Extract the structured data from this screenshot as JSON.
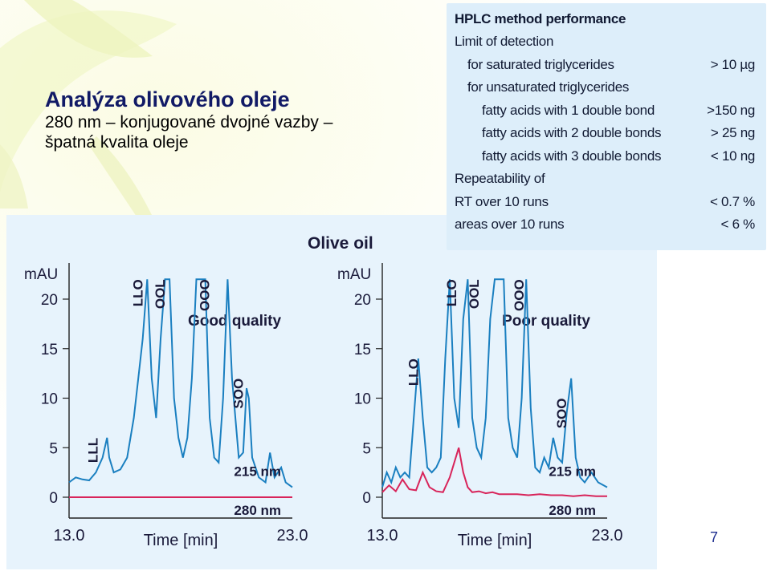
{
  "slide": {
    "title": "Analýza olivového oleje",
    "line1": "280 nm – konjugované dvojné vazby –",
    "line2": "špatná kvalita oleje",
    "page_number": "7"
  },
  "performance": {
    "heading": "HPLC method performance",
    "rows": [
      {
        "label": "Limit of detection",
        "value": ""
      },
      {
        "label": "for saturated triglycerides",
        "value": "> 10 µg"
      },
      {
        "label": "for unsaturated triglycerides",
        "value": ""
      },
      {
        "label": "fatty acids with 1 double bond",
        "value": ">150 ng"
      },
      {
        "label": "fatty acids with 2 double bonds",
        "value": "> 25 ng"
      },
      {
        "label": "fatty acids with 3 double bonds",
        "value": "< 10 ng"
      },
      {
        "label": "Repeatability of",
        "value": ""
      },
      {
        "label": "RT over 10 runs",
        "value": "< 0.7 %"
      },
      {
        "label": "areas over 10 runs",
        "value": "< 6 %"
      }
    ]
  },
  "chart_data": [
    {
      "type": "line",
      "title": "Olive oil",
      "panel_label": "Good quality",
      "xlabel": "Time [min]",
      "ylabel": "mAU",
      "xlim": [
        13.0,
        23.0
      ],
      "ylim": [
        0,
        20
      ],
      "x_ticks": [
        "13.0",
        "23.0"
      ],
      "y_ticks": [
        "0",
        "5",
        "10",
        "15",
        "20"
      ],
      "peak_labels": [
        {
          "label": "LLL",
          "x": 14.5,
          "y": 6
        },
        {
          "label": "LLO",
          "x": 16.5,
          "y": 22
        },
        {
          "label": "OOL",
          "x": 17.5,
          "y": 22
        },
        {
          "label": "OOO",
          "x": 19.5,
          "y": 22
        },
        {
          "label": "SOO",
          "x": 21.0,
          "y": 12
        }
      ],
      "series": [
        {
          "name": "215 nm",
          "color": "#1a7fc0",
          "x": [
            13.0,
            13.3,
            13.6,
            13.9,
            14.2,
            14.5,
            14.7,
            14.8,
            15.0,
            15.3,
            15.6,
            15.9,
            16.1,
            16.3,
            16.5,
            16.7,
            16.9,
            17.1,
            17.3,
            17.5,
            17.7,
            17.9,
            18.1,
            18.3,
            18.5,
            18.7,
            18.9,
            19.1,
            19.3,
            19.5,
            19.7,
            19.9,
            20.1,
            20.3,
            20.6,
            20.8,
            20.95,
            21.05,
            21.2,
            21.5,
            21.8,
            22.0,
            22.2,
            22.5,
            22.7,
            23.0
          ],
          "y": [
            1.5,
            2.0,
            1.8,
            1.7,
            2.5,
            4.0,
            6.0,
            4.0,
            2.5,
            2.8,
            4.0,
            8.0,
            12.0,
            16.0,
            22.0,
            12.0,
            8.0,
            16.0,
            22.0,
            22.0,
            10.0,
            6.0,
            4.0,
            6.0,
            12.0,
            22.0,
            22.0,
            22.0,
            8.0,
            4.0,
            3.5,
            10.0,
            22.0,
            12.0,
            4.0,
            4.5,
            11.0,
            10.0,
            4.0,
            2.0,
            1.5,
            4.5,
            2.0,
            3.0,
            1.5,
            1.0
          ]
        },
        {
          "name": "280 nm",
          "color": "#d8245a",
          "x": [
            13.0,
            23.0
          ],
          "y": [
            0.0,
            0.0
          ]
        }
      ]
    },
    {
      "type": "line",
      "title": "Olive oil",
      "panel_label": "Poor quality",
      "xlabel": "Time [min]",
      "ylabel": "mAU",
      "xlim": [
        13.0,
        23.0
      ],
      "ylim": [
        0,
        20
      ],
      "x_ticks": [
        "13.0",
        "23.0"
      ],
      "y_ticks": [
        "0",
        "5",
        "10",
        "15",
        "20"
      ],
      "peak_labels": [
        {
          "label": "LLO",
          "x": 14.8,
          "y": 14
        },
        {
          "label": "LLO",
          "x": 16.5,
          "y": 22
        },
        {
          "label": "OOL",
          "x": 17.5,
          "y": 22
        },
        {
          "label": "OOO",
          "x": 19.5,
          "y": 22
        },
        {
          "label": "SOO",
          "x": 21.4,
          "y": 10
        }
      ],
      "series": [
        {
          "name": "215 nm",
          "color": "#1a7fc0",
          "x": [
            13.0,
            13.2,
            13.4,
            13.6,
            13.8,
            14.0,
            14.2,
            14.4,
            14.6,
            14.8,
            15.0,
            15.2,
            15.4,
            15.6,
            15.8,
            16.0,
            16.2,
            16.4,
            16.6,
            16.8,
            17.0,
            17.2,
            17.4,
            17.6,
            17.8,
            18.0,
            18.2,
            18.4,
            18.6,
            18.8,
            19.0,
            19.2,
            19.4,
            19.6,
            19.8,
            20.0,
            20.2,
            20.4,
            20.6,
            20.8,
            21.0,
            21.2,
            21.4,
            21.6,
            21.8,
            22.0,
            22.3,
            22.6,
            23.0
          ],
          "y": [
            1.0,
            2.5,
            1.5,
            3.0,
            2.0,
            2.5,
            2.0,
            8.0,
            14.0,
            8.0,
            3.0,
            2.5,
            3.0,
            4.0,
            14.0,
            22.0,
            10.0,
            7.0,
            18.0,
            22.0,
            8.0,
            5.0,
            4.0,
            8.0,
            18.0,
            22.0,
            22.0,
            22.0,
            8.0,
            5.0,
            4.0,
            10.0,
            22.0,
            9.0,
            3.0,
            2.5,
            4.0,
            3.0,
            6.0,
            4.0,
            3.5,
            8.5,
            12.0,
            4.0,
            2.0,
            1.5,
            2.5,
            1.5,
            1.0
          ]
        },
        {
          "name": "280 nm",
          "color": "#d8245a",
          "x": [
            13.0,
            13.3,
            13.6,
            13.9,
            14.2,
            14.5,
            14.8,
            15.1,
            15.4,
            15.7,
            16.0,
            16.2,
            16.4,
            16.6,
            16.8,
            17.0,
            17.3,
            17.6,
            17.9,
            18.2,
            18.5,
            19.0,
            19.5,
            20.0,
            20.5,
            21.0,
            21.5,
            22.0,
            22.5,
            23.0
          ],
          "y": [
            0.5,
            1.2,
            0.6,
            1.8,
            0.8,
            0.7,
            2.5,
            1.0,
            0.6,
            0.5,
            2.0,
            3.5,
            5.0,
            2.5,
            1.0,
            0.5,
            0.6,
            0.4,
            0.5,
            0.3,
            0.3,
            0.3,
            0.2,
            0.3,
            0.2,
            0.2,
            0.1,
            0.2,
            0.1,
            0.1
          ]
        }
      ]
    }
  ]
}
